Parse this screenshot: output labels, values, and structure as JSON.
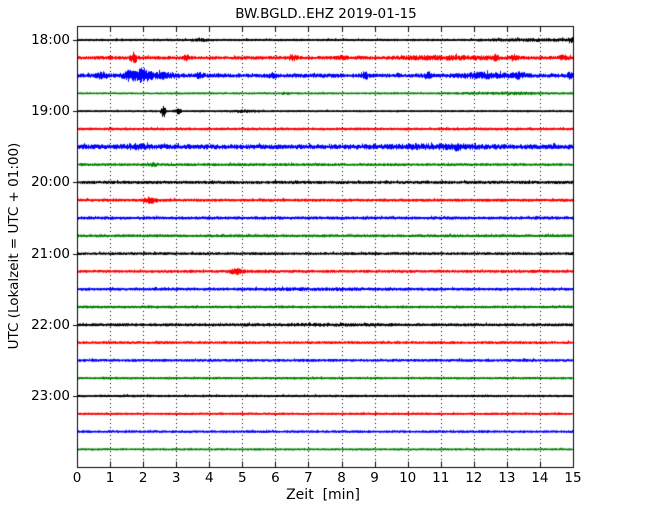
{
  "chart_data": {
    "type": "line",
    "subtype": "seismogram-dayplot",
    "title": "BW.BGLD..EHZ 2019-01-15",
    "xlabel": "Zeit  [min]",
    "ylabel": "UTC (Lokalzeit = UTC + 01:00)",
    "xlim": [
      0,
      15
    ],
    "x_ticks": [
      "0",
      "1",
      "2",
      "3",
      "4",
      "5",
      "6",
      "7",
      "8",
      "9",
      "10",
      "11",
      "12",
      "13",
      "14",
      "15"
    ],
    "y_ticks": [
      "18:00",
      "19:00",
      "20:00",
      "21:00",
      "22:00",
      "23:00"
    ],
    "minutes_per_row": 15,
    "rows_per_hour": 4,
    "grid": {
      "vertical": true,
      "horizontal": false,
      "style": "dotted"
    },
    "trace_colors": {
      "black": "#000000",
      "red": "#ff0000",
      "blue": "#0000ff",
      "green": "#008000"
    },
    "rows": [
      {
        "start": "18:00",
        "color": "#000000",
        "base_amp": 1.3,
        "events": [
          {
            "t": 3.7,
            "w": 0.15,
            "a": 1.2
          },
          {
            "t": 13.8,
            "w": 1.0,
            "a": 0.7
          },
          {
            "t": 14.95,
            "w": 0.08,
            "a": 2.5
          }
        ]
      },
      {
        "start": "18:15",
        "color": "#ff0000",
        "base_amp": 1.9,
        "events": [
          {
            "t": 1.7,
            "w": 0.07,
            "a": 5.0
          },
          {
            "t": 3.3,
            "w": 0.08,
            "a": 2.2
          },
          {
            "t": 6.5,
            "w": 0.1,
            "a": 1.8
          },
          {
            "t": 8.0,
            "w": 0.1,
            "a": 1.2
          },
          {
            "t": 11.2,
            "w": 1.0,
            "a": 1.3
          },
          {
            "t": 12.6,
            "w": 0.08,
            "a": 2.0
          },
          {
            "t": 13.2,
            "w": 0.08,
            "a": 2.0
          },
          {
            "t": 14.7,
            "w": 0.1,
            "a": 1.5
          }
        ]
      },
      {
        "start": "18:30",
        "color": "#0000ff",
        "base_amp": 2.2,
        "events": [
          {
            "t": 0.75,
            "w": 0.12,
            "a": 2.2
          },
          {
            "t": 1.55,
            "w": 0.12,
            "a": 4.5
          },
          {
            "t": 1.95,
            "w": 0.18,
            "a": 6.0
          },
          {
            "t": 2.6,
            "w": 0.25,
            "a": 2.2
          },
          {
            "t": 3.7,
            "w": 0.08,
            "a": 2.0
          },
          {
            "t": 5.9,
            "w": 0.08,
            "a": 1.8
          },
          {
            "t": 8.7,
            "w": 0.06,
            "a": 2.8
          },
          {
            "t": 10.6,
            "w": 0.08,
            "a": 2.2
          },
          {
            "t": 12.3,
            "w": 0.5,
            "a": 1.8
          },
          {
            "t": 13.3,
            "w": 0.15,
            "a": 2.0
          },
          {
            "t": 14.9,
            "w": 0.05,
            "a": 2.5
          }
        ]
      },
      {
        "start": "18:45",
        "color": "#008000",
        "base_amp": 1.1,
        "events": [
          {
            "t": 6.3,
            "w": 0.1,
            "a": 0.8
          },
          {
            "t": 13.0,
            "w": 1.0,
            "a": 0.7
          }
        ]
      },
      {
        "start": "19:00",
        "color": "#000000",
        "base_amp": 1.1,
        "events": [
          {
            "t": 2.6,
            "w": 0.05,
            "a": 6.0
          },
          {
            "t": 3.05,
            "w": 0.05,
            "a": 3.2
          },
          {
            "t": 5.0,
            "w": 0.3,
            "a": 0.8
          }
        ]
      },
      {
        "start": "19:15",
        "color": "#ff0000",
        "base_amp": 1.5,
        "events": []
      },
      {
        "start": "19:30",
        "color": "#0000ff",
        "base_amp": 2.6,
        "events": [
          {
            "t": 1.8,
            "w": 0.25,
            "a": 1.3
          },
          {
            "t": 10.8,
            "w": 1.0,
            "a": 1.0
          },
          {
            "t": 11.5,
            "w": 0.1,
            "a": 1.6
          }
        ]
      },
      {
        "start": "19:45",
        "color": "#008000",
        "base_amp": 1.5,
        "events": [
          {
            "t": 2.3,
            "w": 0.1,
            "a": 1.0
          }
        ]
      },
      {
        "start": "20:00",
        "color": "#000000",
        "base_amp": 1.7,
        "events": []
      },
      {
        "start": "20:15",
        "color": "#ff0000",
        "base_amp": 1.6,
        "events": [
          {
            "t": 2.2,
            "w": 0.15,
            "a": 2.2
          }
        ]
      },
      {
        "start": "20:30",
        "color": "#0000ff",
        "base_amp": 1.7,
        "events": []
      },
      {
        "start": "20:45",
        "color": "#008000",
        "base_amp": 1.6,
        "events": []
      },
      {
        "start": "21:00",
        "color": "#000000",
        "base_amp": 1.5,
        "events": []
      },
      {
        "start": "21:15",
        "color": "#ff0000",
        "base_amp": 1.6,
        "events": [
          {
            "t": 4.8,
            "w": 0.15,
            "a": 2.0
          }
        ]
      },
      {
        "start": "21:30",
        "color": "#0000ff",
        "base_amp": 1.6,
        "events": [
          {
            "t": 7.0,
            "w": 1.5,
            "a": 0.4
          }
        ]
      },
      {
        "start": "21:45",
        "color": "#008000",
        "base_amp": 1.5,
        "events": []
      },
      {
        "start": "22:00",
        "color": "#000000",
        "base_amp": 1.6,
        "events": [
          {
            "t": 7.5,
            "w": 1.5,
            "a": 0.4
          }
        ]
      },
      {
        "start": "22:15",
        "color": "#ff0000",
        "base_amp": 1.5,
        "events": []
      },
      {
        "start": "22:30",
        "color": "#0000ff",
        "base_amp": 1.5,
        "events": []
      },
      {
        "start": "22:45",
        "color": "#008000",
        "base_amp": 1.3,
        "events": []
      },
      {
        "start": "23:00",
        "color": "#000000",
        "base_amp": 1.3,
        "events": []
      },
      {
        "start": "23:15",
        "color": "#ff0000",
        "base_amp": 1.3,
        "events": []
      },
      {
        "start": "23:30",
        "color": "#0000ff",
        "base_amp": 1.4,
        "events": []
      },
      {
        "start": "23:45",
        "color": "#008000",
        "base_amp": 1.2,
        "events": []
      }
    ]
  }
}
